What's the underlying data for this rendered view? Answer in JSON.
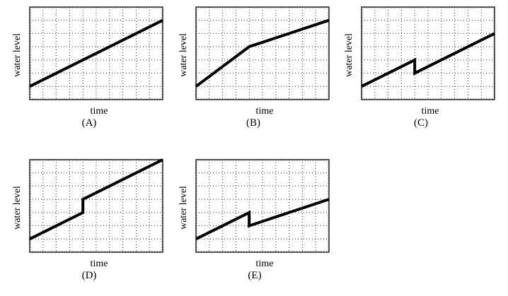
{
  "chart_data": [
    {
      "type": "line",
      "id": "A",
      "caption": "(A)",
      "xlabel": "time",
      "ylabel": "water level",
      "grid": {
        "x_divisions": 10,
        "y_divisions": 7,
        "style": "dotted"
      },
      "xlim": [
        0,
        10
      ],
      "ylim": [
        0,
        7
      ],
      "points": [
        [
          0,
          1
        ],
        [
          10,
          6
        ]
      ],
      "description": "steady linear increase"
    },
    {
      "type": "line",
      "id": "B",
      "caption": "(B)",
      "xlabel": "time",
      "ylabel": "water level",
      "grid": {
        "x_divisions": 10,
        "y_divisions": 7,
        "style": "dotted"
      },
      "xlim": [
        0,
        10
      ],
      "ylim": [
        0,
        7
      ],
      "points": [
        [
          0,
          1
        ],
        [
          4,
          4
        ],
        [
          10,
          6
        ]
      ],
      "description": "faster rise then slower rise"
    },
    {
      "type": "line",
      "id": "C",
      "caption": "(C)",
      "xlabel": "time",
      "ylabel": "water level",
      "grid": {
        "x_divisions": 10,
        "y_divisions": 7,
        "style": "dotted"
      },
      "xlim": [
        0,
        10
      ],
      "ylim": [
        0,
        7
      ],
      "points": [
        [
          0,
          1
        ],
        [
          4,
          3
        ],
        [
          4,
          2
        ],
        [
          10,
          5
        ]
      ],
      "description": "rise, sudden drop, rise at same slope"
    },
    {
      "type": "line",
      "id": "D",
      "caption": "(D)",
      "xlabel": "time",
      "ylabel": "water level",
      "grid": {
        "x_divisions": 10,
        "y_divisions": 7,
        "style": "dotted"
      },
      "xlim": [
        0,
        10
      ],
      "ylim": [
        0,
        7
      ],
      "points": [
        [
          0,
          1
        ],
        [
          4,
          3
        ],
        [
          4,
          4
        ],
        [
          10,
          7
        ]
      ],
      "description": "rise, sudden jump up, rise at same slope"
    },
    {
      "type": "line",
      "id": "E",
      "caption": "(E)",
      "xlabel": "time",
      "ylabel": "water level",
      "grid": {
        "x_divisions": 10,
        "y_divisions": 7,
        "style": "dotted"
      },
      "xlim": [
        0,
        10
      ],
      "ylim": [
        0,
        7
      ],
      "points": [
        [
          0,
          1
        ],
        [
          4,
          3
        ],
        [
          4,
          2
        ],
        [
          10,
          4
        ]
      ],
      "description": "rise, sudden drop, slower rise"
    }
  ],
  "style": {
    "line_color": "#000000",
    "grid_color": "#333333",
    "frame_color": "#000000"
  }
}
